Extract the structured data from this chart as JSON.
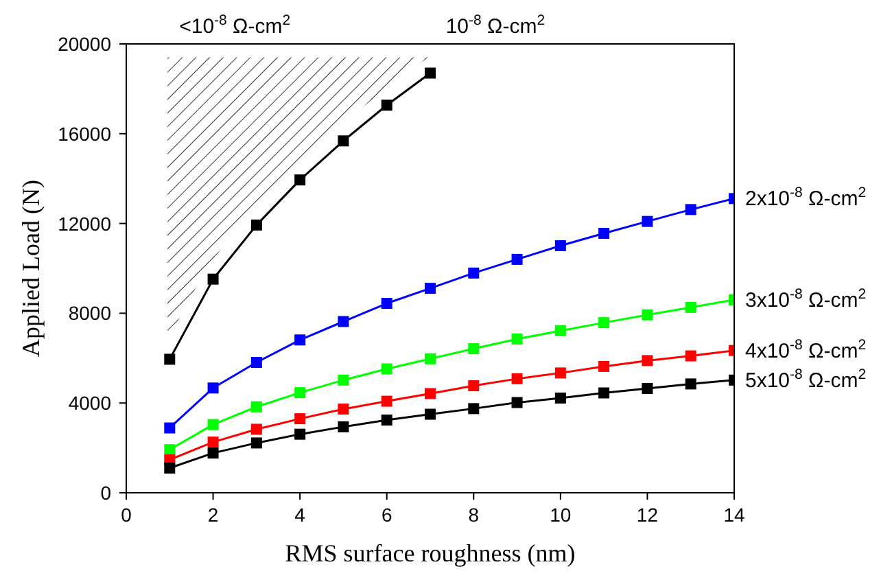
{
  "chart_data": {
    "type": "line",
    "xlabel": "RMS surface roughness (nm)",
    "ylabel": "Applied Load (N)",
    "x": [
      1,
      2,
      3,
      4,
      5,
      6,
      7,
      8,
      9,
      10,
      11,
      12,
      13,
      14
    ],
    "xlim": [
      0,
      14
    ],
    "xticks": [
      0,
      2,
      4,
      6,
      8,
      10,
      12,
      14
    ],
    "ylim": [
      0,
      20000
    ],
    "yticks": [
      0,
      4000,
      8000,
      12000,
      16000,
      20000
    ],
    "grid": false,
    "marker": "square",
    "line_style": "solid",
    "annotations": [
      "<10$^{-8}$ Ω-cm$^{2}$"
    ],
    "series": [
      {
        "name": "10$^{-8}$ Ω-cm$^{2}$",
        "color": "#000000",
        "values": [
          5950,
          9520,
          11930,
          13940,
          15680,
          17270,
          18700,
          null,
          null,
          null,
          null,
          null,
          null,
          null
        ]
      },
      {
        "name": "2x10$^{-8}$ Ω-cm$^{2}$",
        "color": "#0000ff",
        "values": [
          2890,
          4670,
          5810,
          6810,
          7630,
          8440,
          9110,
          9790,
          10400,
          11010,
          11560,
          12090,
          12620,
          13110
        ]
      },
      {
        "name": "3x10$^{-8}$ Ω-cm$^{2}$",
        "color": "#00ff00",
        "values": [
          1920,
          3040,
          3830,
          4460,
          5020,
          5520,
          5970,
          6420,
          6850,
          7220,
          7580,
          7930,
          8260,
          8600
        ]
      },
      {
        "name": "4x10$^{-8}$ Ω-cm$^{2}$",
        "color": "#ff0000",
        "values": [
          1470,
          2260,
          2830,
          3300,
          3730,
          4080,
          4420,
          4770,
          5080,
          5340,
          5630,
          5890,
          6100,
          6340
        ]
      },
      {
        "name": "5x10$^{-8}$ Ω-cm$^{2}$",
        "color": "#000000",
        "values": [
          1100,
          1770,
          2220,
          2610,
          2940,
          3240,
          3500,
          3750,
          4020,
          4220,
          4450,
          4650,
          4850,
          5020
        ]
      }
    ]
  }
}
